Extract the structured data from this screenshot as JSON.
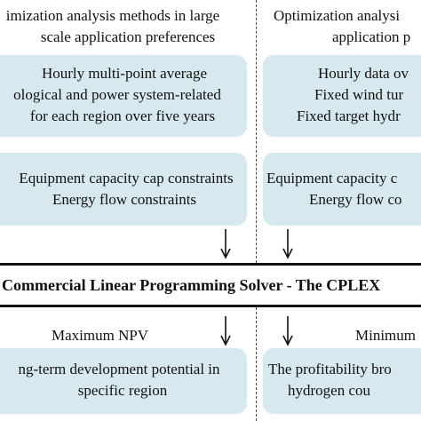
{
  "left": {
    "header": [
      "imization analysis methods in large",
      "scale application preferences"
    ],
    "box1": [
      "Hourly multi-point average",
      "ological and power system-related",
      "for each region over five years"
    ],
    "box2": [
      "Equipment capacity cap constraints",
      "Energy flow constraints"
    ],
    "objective": "Maximum NPV",
    "result": [
      "ng-term development potential in",
      "specific region"
    ]
  },
  "right": {
    "header": [
      "Optimization analysi",
      "application p"
    ],
    "box1": [
      "Hourly data ov",
      "Fixed wind tur",
      "Fixed target hydr"
    ],
    "box2": [
      "Equipment capacity c",
      "Energy flow co"
    ],
    "objective": "Minimum",
    "result": [
      "The profitability bro",
      "hydrogen cou"
    ]
  },
  "solver": "Commercial Linear Programming Solver - The CPLEX"
}
